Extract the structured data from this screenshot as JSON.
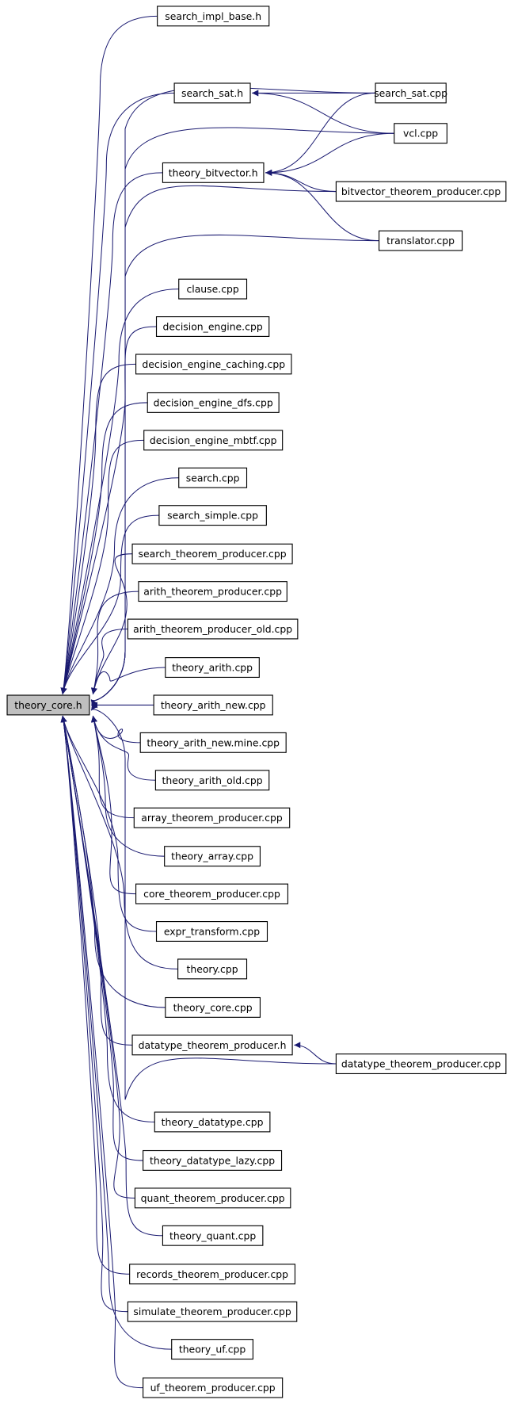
{
  "graph": {
    "root": "theory_core.h",
    "colors": {
      "edge": "#191970",
      "root_fill": "#bfbfbf",
      "node_fill": "#ffffff",
      "incomplete_border": "#ff0000",
      "border": "#000000"
    },
    "nodes": [
      {
        "id": "theory_core.h",
        "style": "root"
      },
      {
        "id": "search_impl_base.h",
        "style": "incomplete"
      },
      {
        "id": "search_sat.h",
        "style": "normal"
      },
      {
        "id": "theory_bitvector.h",
        "style": "incomplete"
      },
      {
        "id": "clause.cpp",
        "style": "normal"
      },
      {
        "id": "decision_engine.cpp",
        "style": "normal"
      },
      {
        "id": "decision_engine_caching.cpp",
        "style": "normal"
      },
      {
        "id": "decision_engine_dfs.cpp",
        "style": "normal"
      },
      {
        "id": "decision_engine_mbtf.cpp",
        "style": "normal"
      },
      {
        "id": "search.cpp",
        "style": "normal"
      },
      {
        "id": "search_simple.cpp",
        "style": "normal"
      },
      {
        "id": "search_theorem_producer.cpp",
        "style": "normal"
      },
      {
        "id": "arith_theorem_producer.cpp",
        "style": "normal"
      },
      {
        "id": "arith_theorem_producer_old.cpp",
        "style": "normal"
      },
      {
        "id": "theory_arith.cpp",
        "style": "normal"
      },
      {
        "id": "theory_arith_new.cpp",
        "style": "normal"
      },
      {
        "id": "theory_arith_new.mine.cpp",
        "style": "normal"
      },
      {
        "id": "theory_arith_old.cpp",
        "style": "normal"
      },
      {
        "id": "array_theorem_producer.cpp",
        "style": "normal"
      },
      {
        "id": "theory_array.cpp",
        "style": "normal"
      },
      {
        "id": "core_theorem_producer.cpp",
        "style": "normal"
      },
      {
        "id": "expr_transform.cpp",
        "style": "normal"
      },
      {
        "id": "theory.cpp",
        "style": "normal"
      },
      {
        "id": "theory_core.cpp",
        "style": "normal"
      },
      {
        "id": "datatype_theorem_producer.h",
        "style": "normal"
      },
      {
        "id": "theory_datatype.cpp",
        "style": "normal"
      },
      {
        "id": "theory_datatype_lazy.cpp",
        "style": "normal"
      },
      {
        "id": "quant_theorem_producer.cpp",
        "style": "normal"
      },
      {
        "id": "theory_quant.cpp",
        "style": "normal"
      },
      {
        "id": "records_theorem_producer.cpp",
        "style": "normal"
      },
      {
        "id": "simulate_theorem_producer.cpp",
        "style": "normal"
      },
      {
        "id": "theory_uf.cpp",
        "style": "normal"
      },
      {
        "id": "uf_theorem_producer.cpp",
        "style": "normal"
      },
      {
        "id": "search_sat.cpp",
        "style": "normal"
      },
      {
        "id": "vcl.cpp",
        "style": "normal"
      },
      {
        "id": "bitvector_theorem_producer.cpp",
        "style": "normal"
      },
      {
        "id": "translator.cpp",
        "style": "normal"
      },
      {
        "id": "datatype_theorem_producer.cpp",
        "style": "normal"
      }
    ],
    "edges": [
      [
        "search_sat.cpp",
        "search_sat.h"
      ],
      [
        "vcl.cpp",
        "search_sat.h"
      ],
      [
        "search_sat.cpp",
        "theory_bitvector.h"
      ],
      [
        "vcl.cpp",
        "theory_bitvector.h"
      ],
      [
        "bitvector_theorem_producer.cpp",
        "theory_bitvector.h"
      ],
      [
        "translator.cpp",
        "theory_bitvector.h"
      ],
      [
        "datatype_theorem_producer.cpp",
        "datatype_theorem_producer.h"
      ],
      [
        "search_sat.cpp",
        "theory_core.h"
      ],
      [
        "vcl.cpp",
        "theory_core.h"
      ],
      [
        "bitvector_theorem_producer.cpp",
        "theory_core.h"
      ],
      [
        "translator.cpp",
        "theory_core.h"
      ],
      [
        "datatype_theorem_producer.cpp",
        "theory_core.h"
      ]
    ]
  }
}
